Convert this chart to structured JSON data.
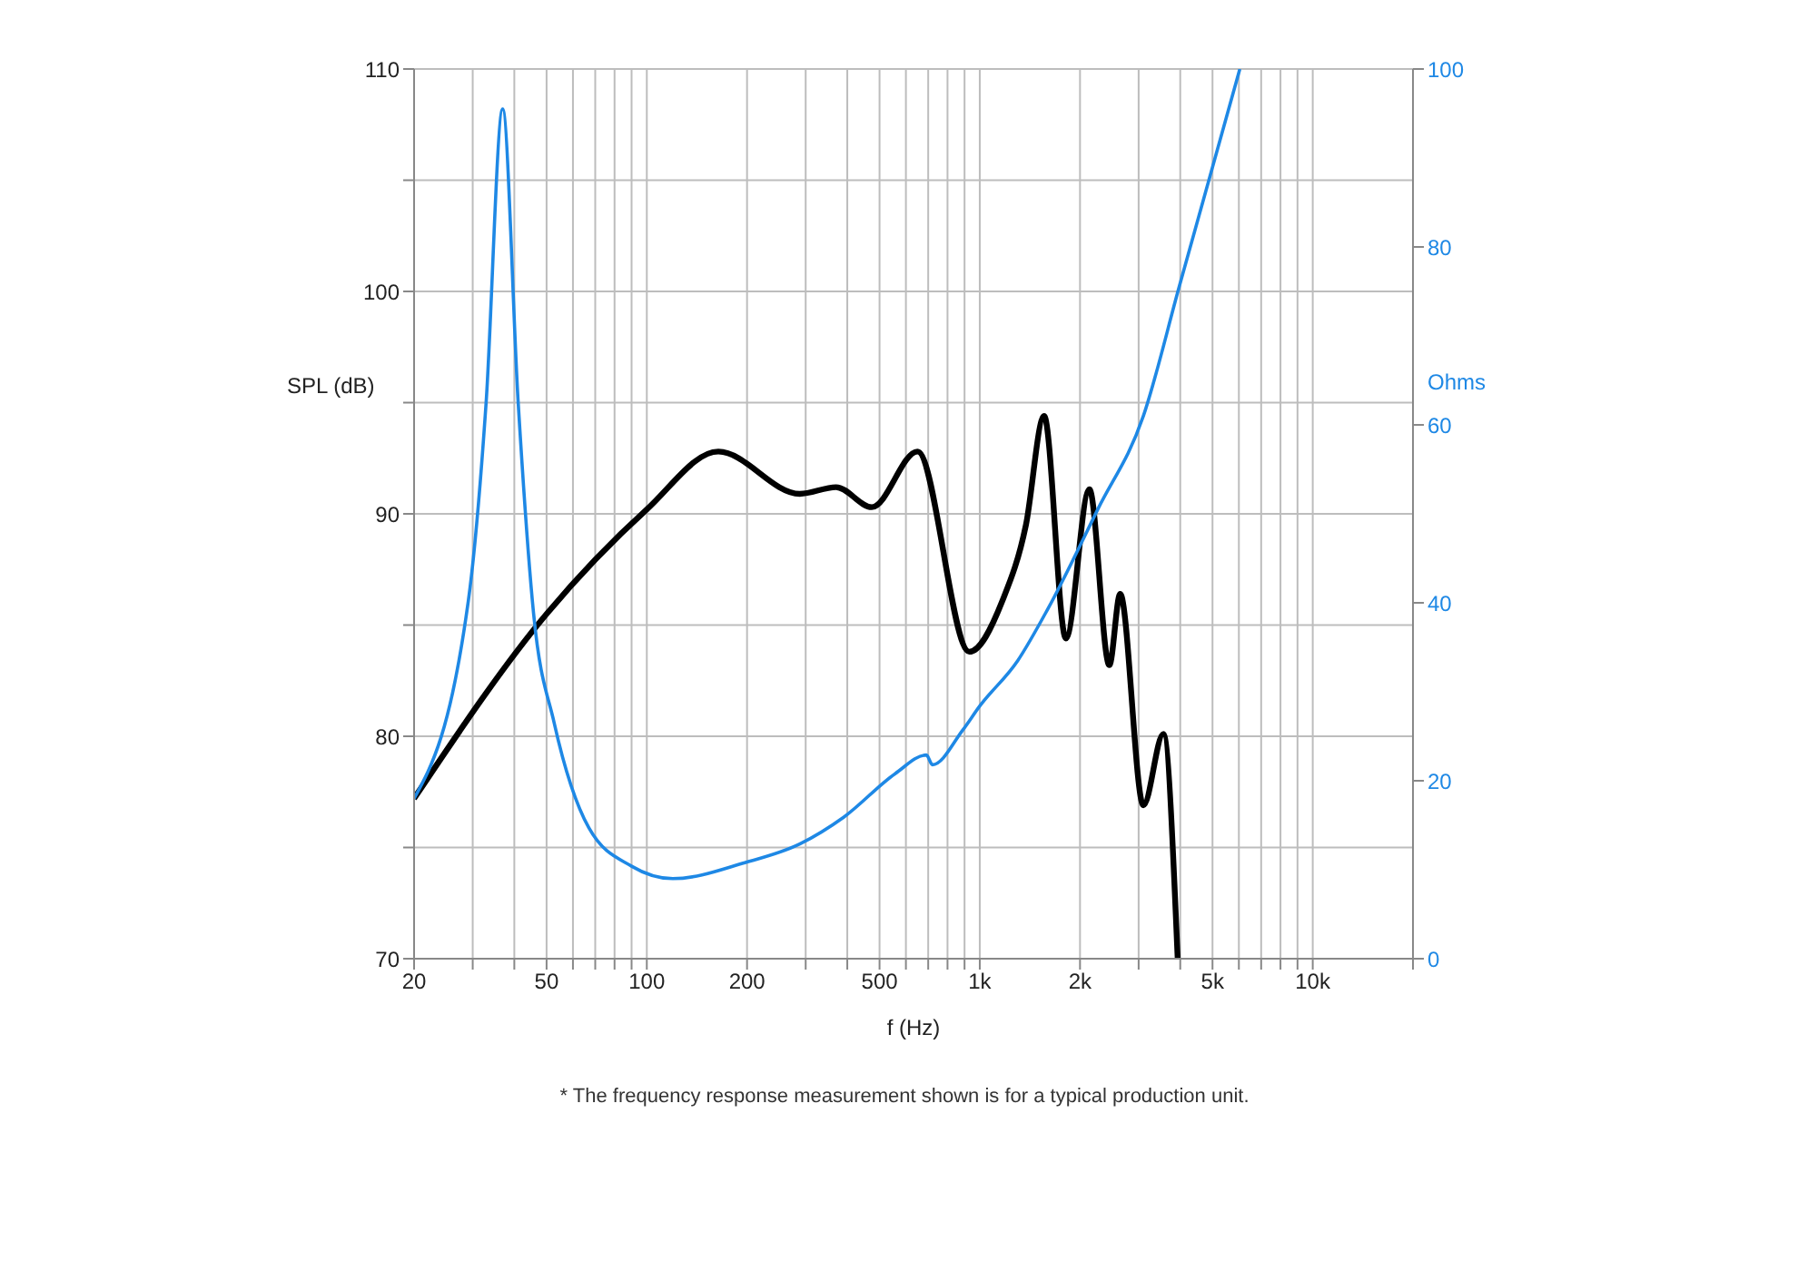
{
  "chart_data": {
    "type": "line",
    "xlabel": "f (Hz)",
    "ylabel": "SPL (dB)",
    "y2label": "Ohms",
    "log": "x",
    "grid": true,
    "marker": "none",
    "line_style": "solid",
    "xlim": [
      20,
      20000
    ],
    "xticks": [
      {
        "value": 20,
        "label": "20"
      },
      {
        "value": 30,
        "label": null
      },
      {
        "value": 40,
        "label": null
      },
      {
        "value": 50,
        "label": "50"
      },
      {
        "value": 60,
        "label": null
      },
      {
        "value": 70,
        "label": null
      },
      {
        "value": 80,
        "label": null
      },
      {
        "value": 90,
        "label": null
      },
      {
        "value": 100,
        "label": "100"
      },
      {
        "value": 200,
        "label": "200"
      },
      {
        "value": 300,
        "label": null
      },
      {
        "value": 400,
        "label": null
      },
      {
        "value": 500,
        "label": "500"
      },
      {
        "value": 600,
        "label": null
      },
      {
        "value": 700,
        "label": null
      },
      {
        "value": 800,
        "label": null
      },
      {
        "value": 900,
        "label": null
      },
      {
        "value": 1000,
        "label": "1k"
      },
      {
        "value": 2000,
        "label": "2k"
      },
      {
        "value": 3000,
        "label": null
      },
      {
        "value": 4000,
        "label": null
      },
      {
        "value": 5000,
        "label": "5k"
      },
      {
        "value": 6000,
        "label": null
      },
      {
        "value": 7000,
        "label": null
      },
      {
        "value": 8000,
        "label": null
      },
      {
        "value": 9000,
        "label": null
      },
      {
        "value": 10000,
        "label": "10k"
      },
      {
        "value": 20000,
        "label": null
      }
    ],
    "ylim": [
      70,
      110
    ],
    "yticks": [
      70,
      {
        "value": 75,
        "label": null
      },
      80,
      {
        "value": 85,
        "label": null
      },
      90,
      {
        "value": 95,
        "label": null
      },
      100,
      {
        "value": 105,
        "label": null
      },
      110
    ],
    "y2lim": [
      0,
      100
    ],
    "y2ticks": [
      0,
      20,
      40,
      60,
      80,
      100
    ],
    "series": [
      {
        "color": "#000000",
        "x": [
          20,
          50,
          100,
          164,
          288,
          370,
          474,
          650,
          930,
          1170,
          1376,
          1560,
          1814,
          2134,
          2450,
          2640,
          3100,
          3560,
          3930
        ],
        "values": [
          77.2,
          85.5,
          90.2,
          92.8,
          90.9,
          91.2,
          90.3,
          92.8,
          83.8,
          86.1,
          89.5,
          94.4,
          84.4,
          91.1,
          83.2,
          86.4,
          76.9,
          80.1,
          70
        ]
      },
      {
        "axis": "y2",
        "color": "#1e88e5",
        "x": [
          20,
          29.1,
          32.9,
          36.9,
          41.1,
          45.7,
          52.7,
          67,
          90,
          119.7,
          197,
          288,
          390,
          557,
          691,
          721,
          889,
          1000,
          1300,
          1595,
          2268,
          3100,
          3970,
          6040
        ],
        "values": [
          18,
          40.2,
          62.4,
          95.5,
          62.4,
          38.8,
          26.5,
          14.7,
          10.4,
          9,
          10.8,
          12.9,
          15.9,
          20.8,
          22.9,
          21.8,
          25.7,
          28.4,
          33.5,
          39.2,
          50.6,
          61,
          75.5,
          100
        ]
      }
    ],
    "annotations": [
      "* The frequency response measurement shown is for a typical production unit."
    ]
  }
}
